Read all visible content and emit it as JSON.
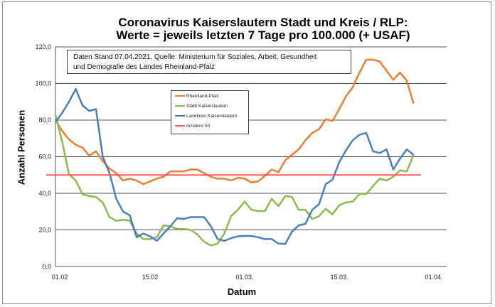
{
  "chart_data": {
    "type": "line",
    "title": "Coronavirus Kaiserslautern Stadt und Kreis / RLP:",
    "subtitle": "Werte = jeweils letzten 7 Tage pro 100.000 (+ USAF)",
    "note_line1": "Daten Stand 07.04.2021, Quelle: Ministerium für Soziales, Arbeit, Gesundheit",
    "note_line2": "und Demografie des Landes Rheinland-Pfalz",
    "xlabel": "Datum",
    "ylabel": "Anzahl Personen",
    "ylim": [
      0,
      120
    ],
    "yticks": [
      0,
      20,
      40,
      60,
      80,
      100,
      120
    ],
    "ytick_labels": [
      "0,0",
      "20,0",
      "40,0",
      "60,0",
      "80,0",
      "100,0",
      "120,0"
    ],
    "xticks": [
      0,
      14,
      28,
      42,
      56
    ],
    "xtick_labels": [
      "01.02",
      "15.02",
      "01.03.",
      "15.03.",
      "01.04."
    ],
    "grid": true,
    "legend_position": "upper-center",
    "series": [
      {
        "name": "Rheinland-Pfalz",
        "color": "#ED7D31",
        "values": [
          80,
          74,
          69.5,
          66.5,
          65,
          60.5,
          63,
          57.5,
          53.5,
          51,
          47,
          48,
          47,
          45,
          46.5,
          48,
          49,
          52,
          52,
          52,
          53,
          53,
          51,
          49,
          48,
          48,
          47,
          48.5,
          48,
          46,
          46.5,
          49.5,
          53,
          51.5,
          58,
          61,
          64,
          69,
          73,
          75,
          80.5,
          79.5,
          86,
          93,
          98,
          106,
          113,
          113,
          112,
          107,
          102,
          106,
          101.5,
          89
        ]
      },
      {
        "name": "Stadt Kaiserslautern",
        "color": "#8DB94B",
        "values": [
          83,
          68,
          50.5,
          47,
          39.5,
          38.5,
          38,
          35,
          27,
          25,
          25.5,
          25,
          18,
          15,
          15,
          16,
          22.5,
          22,
          20.5,
          20.5,
          20,
          17.5,
          13.5,
          11.5,
          12.5,
          18,
          27.5,
          31,
          35.5,
          31,
          30.3,
          30.3,
          37,
          33,
          38.5,
          38,
          31,
          31,
          26,
          27.5,
          31.5,
          28.5,
          33.5,
          35,
          35.5,
          39.6,
          39.6,
          44,
          48,
          47,
          49,
          52.5,
          52,
          61
        ]
      },
      {
        "name": "Landkreis Kaiserslautern",
        "color": "#4A7EBB",
        "values": [
          79,
          84,
          90,
          97,
          88,
          85,
          86,
          60,
          51,
          37,
          30,
          28,
          16,
          18,
          16.5,
          14,
          18,
          22,
          26.4,
          26,
          27,
          27,
          27,
          22,
          15,
          14,
          15.5,
          16.5,
          16.7,
          16.7,
          16,
          15,
          15,
          12.5,
          12.3,
          19,
          22.5,
          23.3,
          31,
          34,
          45,
          47.4,
          57,
          63.5,
          69,
          72,
          73,
          63,
          62,
          64,
          53,
          59,
          64,
          61
        ]
      },
      {
        "name": "Inzidenz 50",
        "color": "#FF5B5B",
        "values": [
          50,
          50
        ]
      }
    ]
  }
}
